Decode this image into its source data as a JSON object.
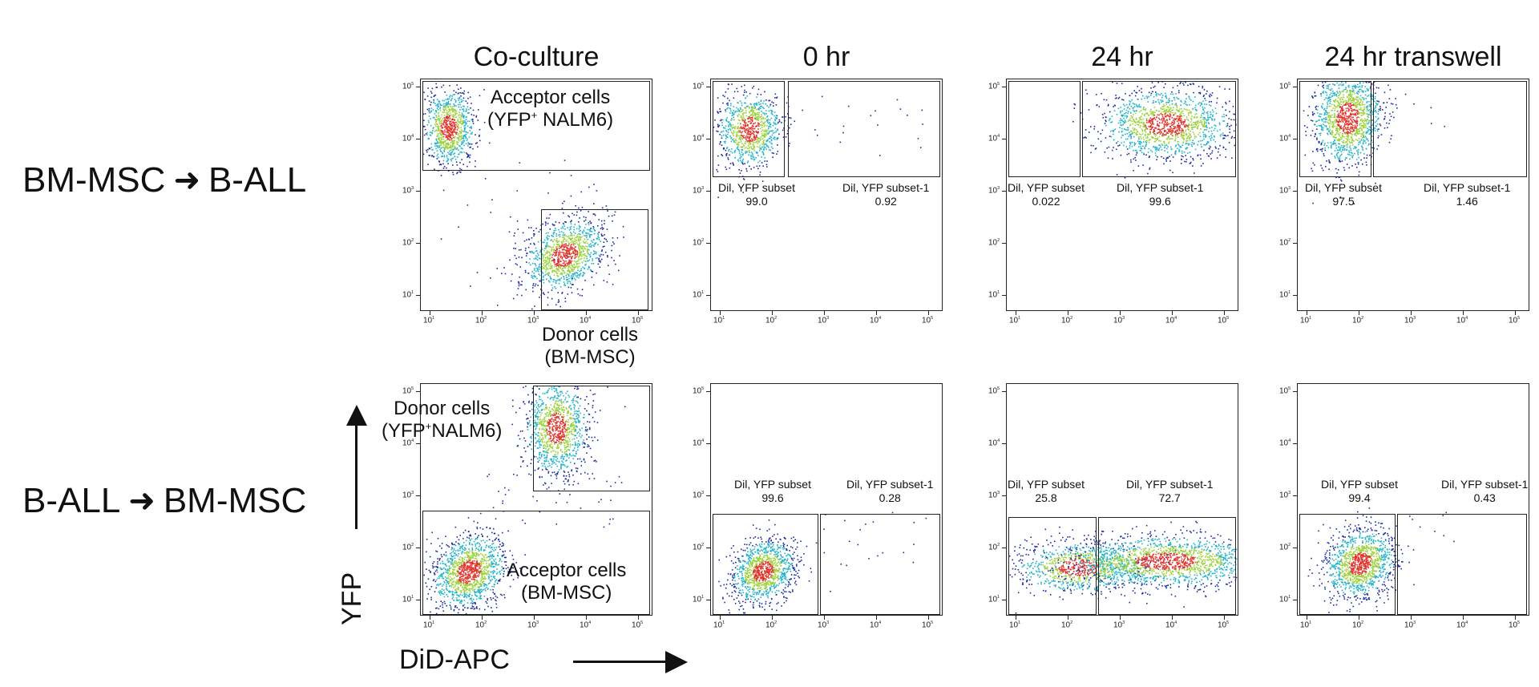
{
  "columns": [
    "Co-culture",
    "0 hr",
    "24 hr",
    "24 hr transwell"
  ],
  "rows": [
    {
      "label_left": "BM-MSC",
      "label_right": "B-ALL"
    },
    {
      "label_left": "B-ALL",
      "label_right": "BM-MSC"
    }
  ],
  "axis": {
    "y_label": "YFP",
    "x_label": "DiD-APC",
    "ticks": [
      "10",
      "10",
      "10",
      "10",
      "10"
    ],
    "exponents": [
      "1",
      "2",
      "3",
      "4",
      "5"
    ]
  },
  "coculture_labels": {
    "row1_acceptor_line1": "Acceptor cells",
    "row1_acceptor_line2_a": "(YFP",
    "row1_acceptor_sup": "+",
    "row1_acceptor_line2_b": " NALM6)",
    "row1_donor_line1": "Donor cells",
    "row1_donor_line2": "(BM-MSC)",
    "row2_donor_line1": "Donor cells",
    "row2_donor_line2_a": "(YFP",
    "row2_donor_sup": "+",
    "row2_donor_line2_b": "NALM6)",
    "row2_acceptor_line1": "Acceptor cells",
    "row2_acceptor_line2": "(BM-MSC)"
  },
  "gate_names": {
    "subset": "Dil, YFP subset",
    "subset1": "Dil, YFP subset-1"
  },
  "gate_values": {
    "r1_0hr": [
      "99.0",
      "0.92"
    ],
    "r1_24hr": [
      "0.022",
      "99.6"
    ],
    "r1_24hr_transwell": [
      "97.5",
      "1.46"
    ],
    "r2_0hr": [
      "99.6",
      "0.28"
    ],
    "r2_24hr": [
      "25.8",
      "72.7"
    ],
    "r2_24hr_transwell": [
      "99.4",
      "0.43"
    ]
  },
  "colors": {
    "low": "#1a2a9e",
    "mid": "#1fb3c9",
    "high_mid": "#9ad23a",
    "high": "#e0332a",
    "line": "#222222"
  }
}
